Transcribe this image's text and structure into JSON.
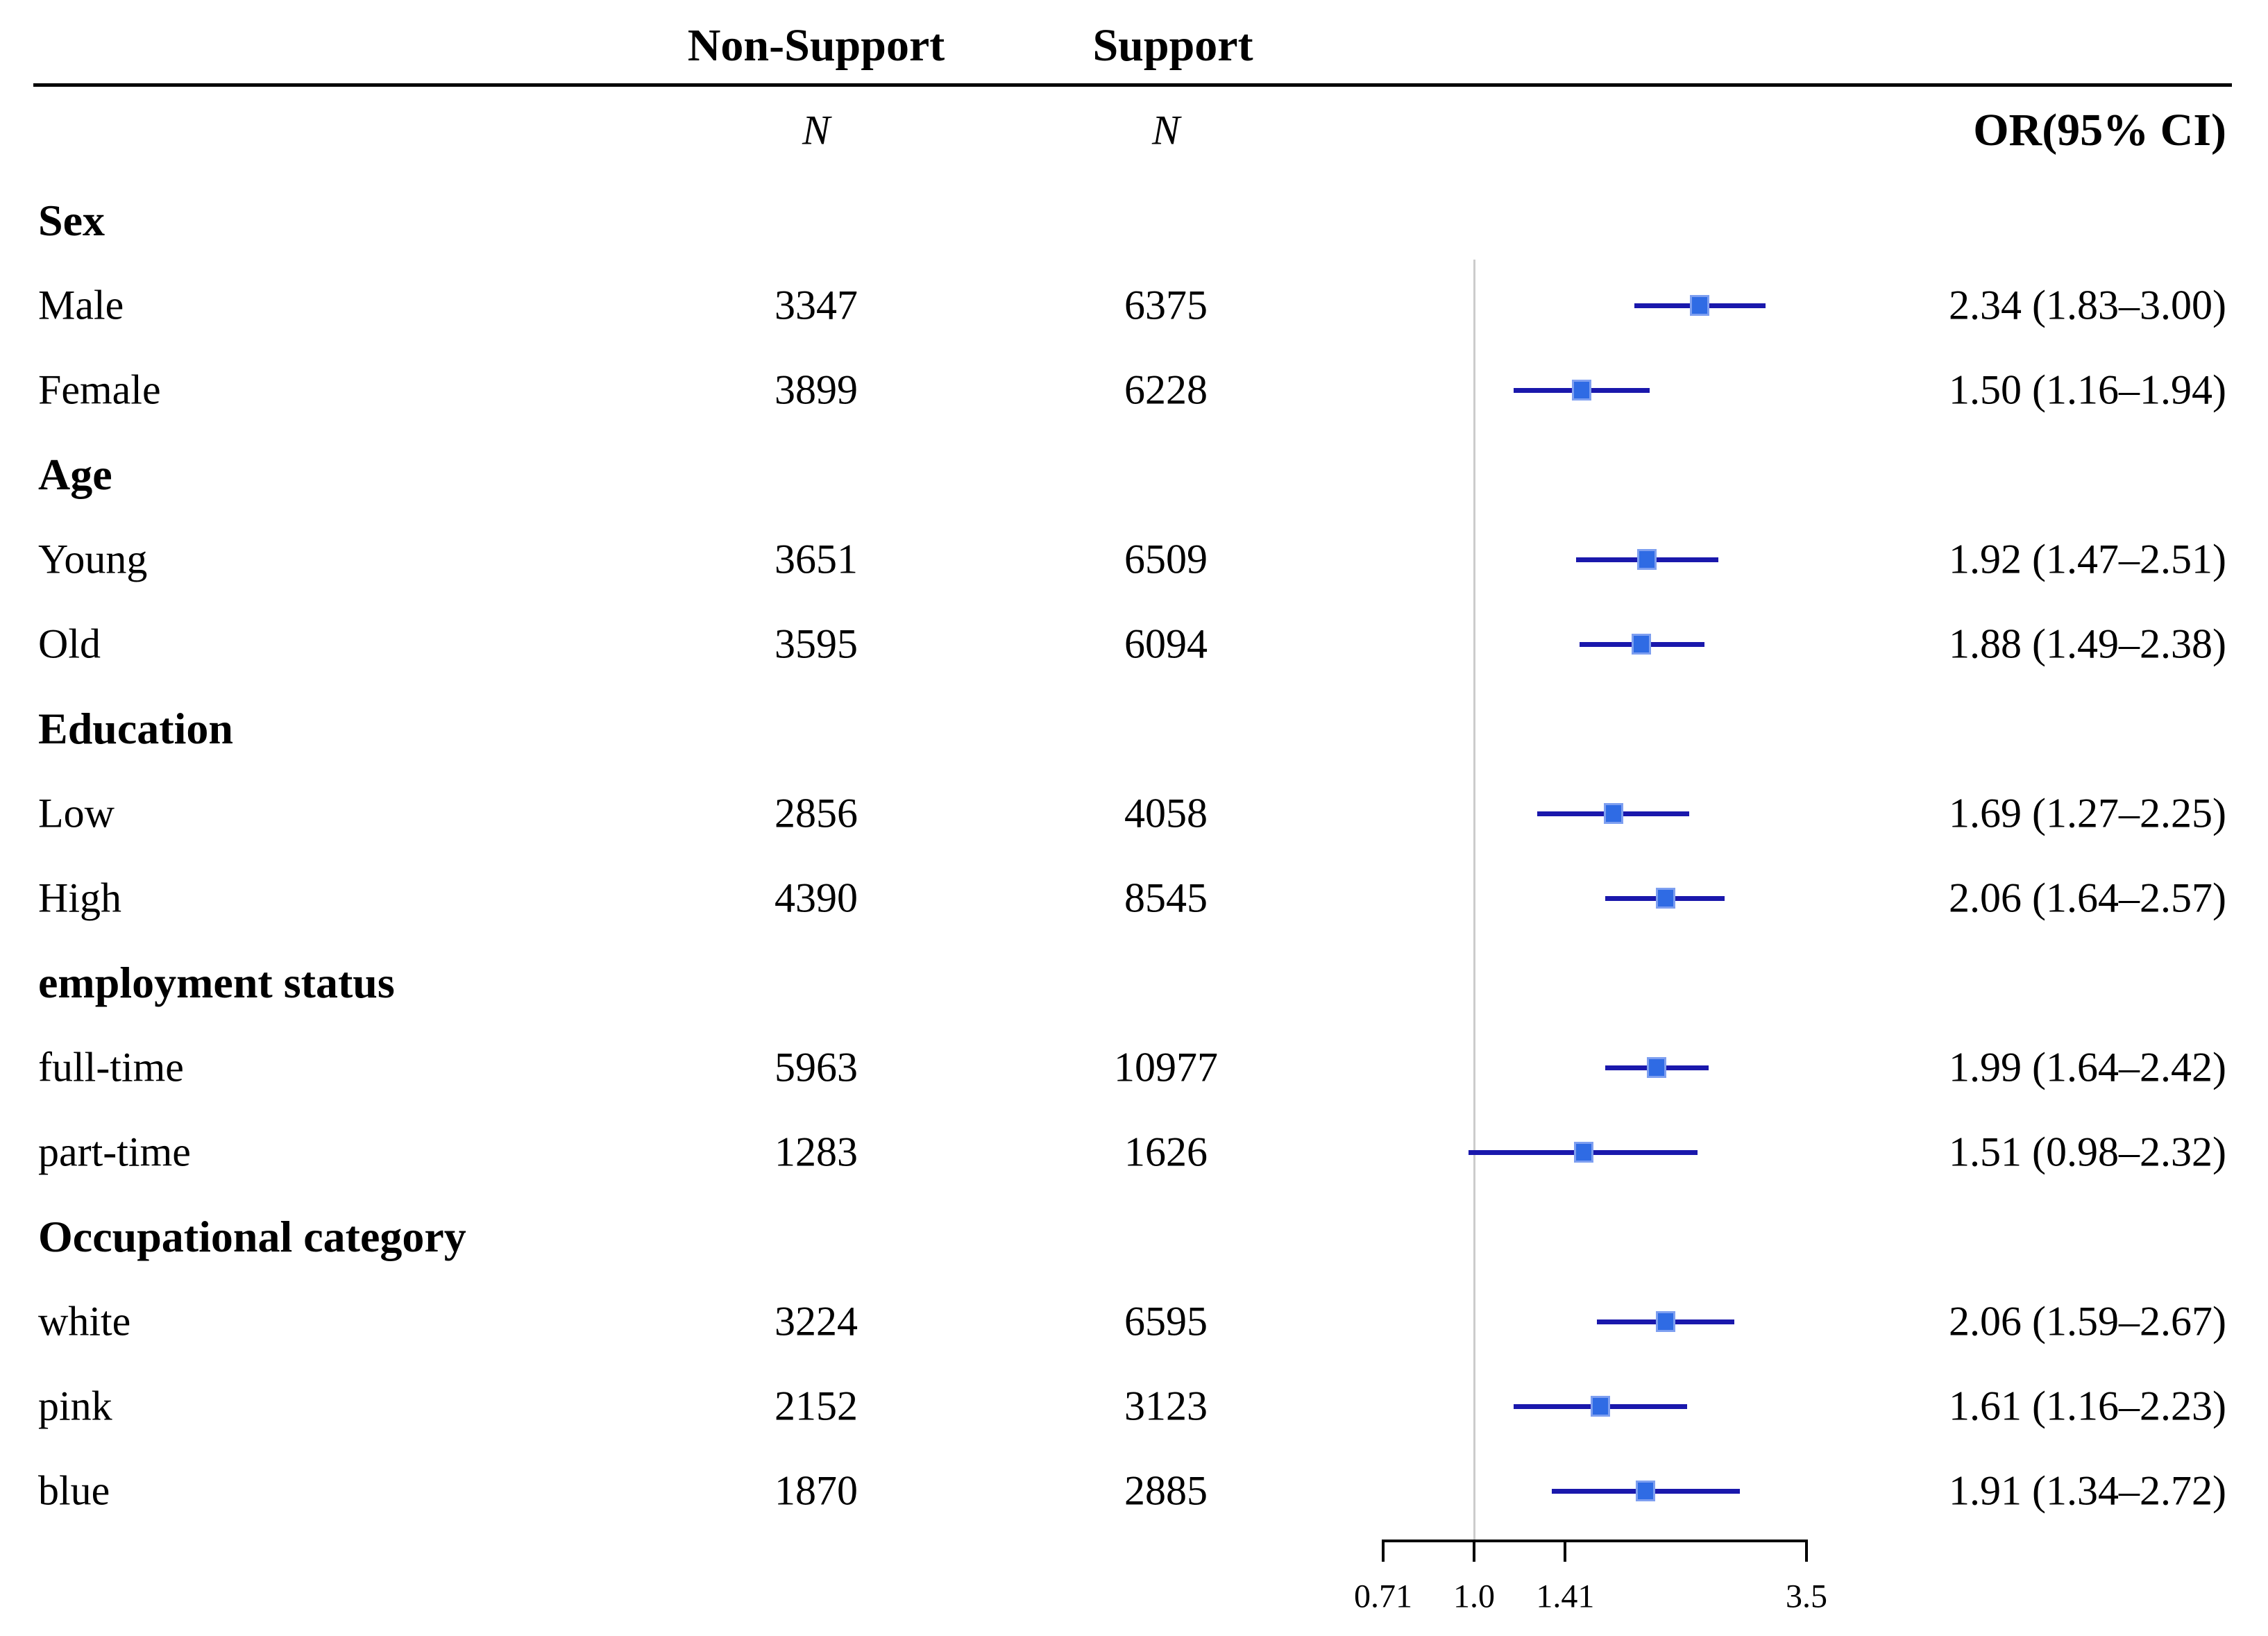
{
  "figure": {
    "header": {
      "group1": "Non-Support",
      "group2": "Support",
      "n_label": "N",
      "or_label": "OR(95% CI)"
    }
  },
  "chart_data": {
    "type": "forest",
    "orientation": "horizontal",
    "x_axis": {
      "scale": "log2",
      "tick_labels": [
        "0.71",
        "1.0",
        "1.41",
        "3.5"
      ],
      "tick_values": [
        0.71,
        1.0,
        1.41,
        3.5
      ],
      "null_value": 1.0,
      "grid": false
    },
    "column_headers": [
      "Non-Support N",
      "Support N",
      "OR(95% CI)"
    ],
    "rows": [
      {
        "kind": "section",
        "label": "Sex"
      },
      {
        "kind": "data",
        "label": "Male",
        "non_support_n": "3347",
        "support_n": "6375",
        "or": 2.34,
        "ci_low": 1.83,
        "ci_high": 3.0,
        "or_text": "2.34 (1.83–3.00)"
      },
      {
        "kind": "data",
        "label": "Female",
        "non_support_n": "3899",
        "support_n": "6228",
        "or": 1.5,
        "ci_low": 1.16,
        "ci_high": 1.94,
        "or_text": "1.50 (1.16–1.94)"
      },
      {
        "kind": "section",
        "label": "Age"
      },
      {
        "kind": "data",
        "label": "Young",
        "non_support_n": "3651",
        "support_n": "6509",
        "or": 1.92,
        "ci_low": 1.47,
        "ci_high": 2.51,
        "or_text": "1.92 (1.47–2.51)"
      },
      {
        "kind": "data",
        "label": "Old",
        "non_support_n": "3595",
        "support_n": "6094",
        "or": 1.88,
        "ci_low": 1.49,
        "ci_high": 2.38,
        "or_text": "1.88 (1.49–2.38)"
      },
      {
        "kind": "section",
        "label": "Education"
      },
      {
        "kind": "data",
        "label": "Low",
        "non_support_n": "2856",
        "support_n": "4058",
        "or": 1.69,
        "ci_low": 1.27,
        "ci_high": 2.25,
        "or_text": "1.69 (1.27–2.25)"
      },
      {
        "kind": "data",
        "label": "High",
        "non_support_n": "4390",
        "support_n": "8545",
        "or": 2.06,
        "ci_low": 1.64,
        "ci_high": 2.57,
        "or_text": "2.06 (1.64–2.57)"
      },
      {
        "kind": "section",
        "label": "employment status"
      },
      {
        "kind": "data",
        "label": "full-time",
        "non_support_n": "5963",
        "support_n": "10977",
        "or": 1.99,
        "ci_low": 1.64,
        "ci_high": 2.42,
        "or_text": "1.99 (1.64–2.42)"
      },
      {
        "kind": "data",
        "label": "part-time",
        "non_support_n": "1283",
        "support_n": "1626",
        "or": 1.51,
        "ci_low": 0.98,
        "ci_high": 2.32,
        "or_text": "1.51 (0.98–2.32)"
      },
      {
        "kind": "section",
        "label": "Occupational category"
      },
      {
        "kind": "data",
        "label": "white",
        "non_support_n": "3224",
        "support_n": "6595",
        "or": 2.06,
        "ci_low": 1.59,
        "ci_high": 2.67,
        "or_text": "2.06 (1.59–2.67)"
      },
      {
        "kind": "data",
        "label": "pink",
        "non_support_n": "2152",
        "support_n": "3123",
        "or": 1.61,
        "ci_low": 1.16,
        "ci_high": 2.23,
        "or_text": "1.61 (1.16–2.23)"
      },
      {
        "kind": "data",
        "label": "blue",
        "non_support_n": "1870",
        "support_n": "2885",
        "or": 1.91,
        "ci_low": 1.34,
        "ci_high": 2.72,
        "or_text": "1.91 (1.34–2.72)"
      }
    ],
    "colors": {
      "ci_line": "#1a18ac",
      "marker_fill": "#2f6be4",
      "marker_border": "#7e9ff0",
      "null_line": "#cccccc",
      "axis": "#000000",
      "text": "#000000",
      "background": "#ffffff"
    }
  }
}
